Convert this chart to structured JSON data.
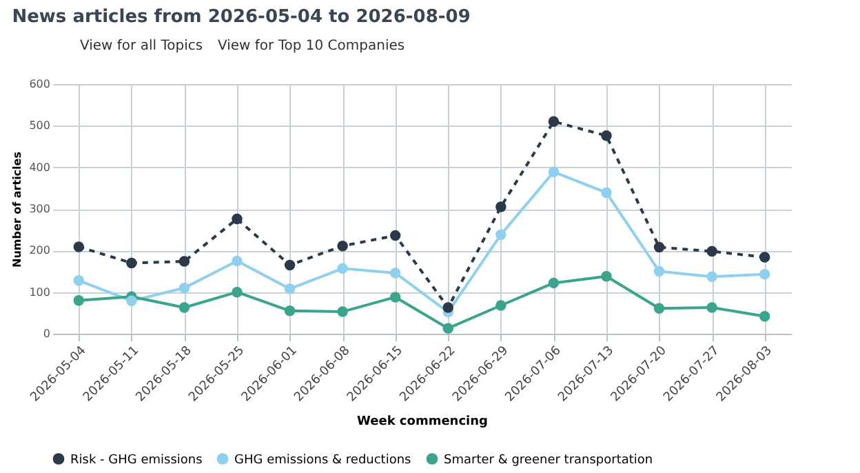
{
  "chart_data": {
    "type": "line",
    "title": "News articles from 2026-05-04 to 2026-08-09",
    "annotations": [
      "View for all Topics",
      "View for Top 10 Companies"
    ],
    "xlabel": "Week commencing",
    "ylabel": "Number of articles",
    "categories": [
      "2026-05-04",
      "2026-05-11",
      "2026-05-18",
      "2026-05-25",
      "2026-06-01",
      "2026-06-08",
      "2026-06-15",
      "2026-06-22",
      "2026-06-29",
      "2026-07-06",
      "2026-07-13",
      "2026-07-20",
      "2026-07-27",
      "2026-08-03"
    ],
    "series": [
      {
        "name": "Risk - GHG emissions",
        "color": "#2b3a4a",
        "line_style": "dashed",
        "values": [
          209,
          170,
          174,
          276,
          165,
          211,
          236,
          63,
          305,
          510,
          476,
          208,
          198,
          184
        ]
      },
      {
        "name": "GHG emissions & reductions",
        "color": "#8fd0ee",
        "line_style": "solid",
        "values": [
          128,
          79,
          110,
          175,
          108,
          157,
          146,
          52,
          238,
          389,
          339,
          150,
          137,
          143
        ]
      },
      {
        "name": "Smarter & greener transportation",
        "color": "#3aa58c",
        "line_style": "solid",
        "values": [
          80,
          89,
          63,
          100,
          55,
          53,
          88,
          13,
          68,
          122,
          138,
          61,
          63,
          42
        ]
      }
    ],
    "ylim": [
      0,
      600
    ],
    "yticks": [
      0,
      100,
      200,
      300,
      400,
      500,
      600
    ],
    "grid": true,
    "legend": "bottom",
    "marker": "circle"
  }
}
